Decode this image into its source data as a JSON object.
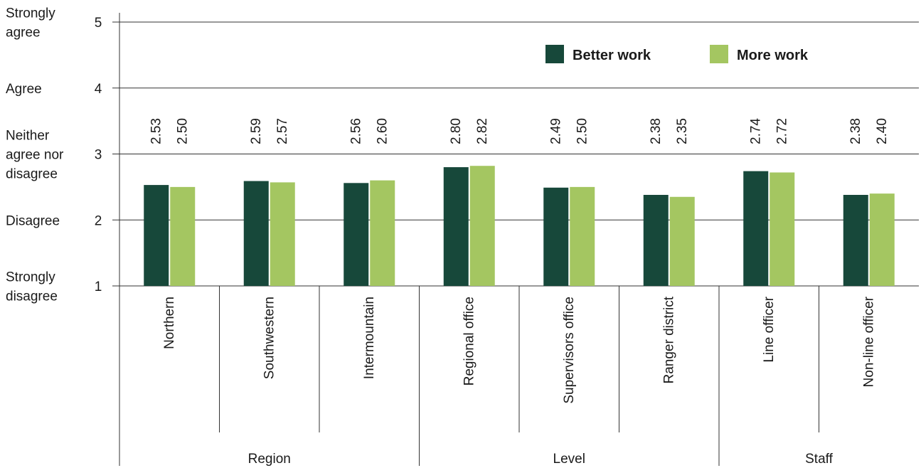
{
  "chart_data": {
    "type": "bar",
    "categories": [
      "Northern",
      "Southwestern",
      "Intermountain",
      "Regional office",
      "Supervisors office",
      "Ranger district",
      "Line officer",
      "Non-line officer"
    ],
    "groups": [
      {
        "label": "Region",
        "categories": [
          "Northern",
          "Southwestern",
          "Intermountain"
        ]
      },
      {
        "label": "Level",
        "categories": [
          "Regional office",
          "Supervisors office",
          "Ranger district"
        ]
      },
      {
        "label": "Staff",
        "categories": [
          "Line officer",
          "Non-line officer"
        ]
      }
    ],
    "series": [
      {
        "name": "Better work",
        "color": "#17483a",
        "values": [
          2.53,
          2.59,
          2.56,
          2.8,
          2.49,
          2.38,
          2.74,
          2.38
        ],
        "labels": [
          "2.53",
          "2.59",
          "2.56",
          "2.80",
          "2.49",
          "2.38",
          "2.74",
          "2.38"
        ]
      },
      {
        "name": "More work",
        "color": "#a4c661",
        "values": [
          2.5,
          2.57,
          2.6,
          2.82,
          2.5,
          2.35,
          2.72,
          2.4
        ],
        "labels": [
          "2.50",
          "2.57",
          "2.60",
          "2.82",
          "2.50",
          "2.35",
          "2.72",
          "2.40"
        ]
      }
    ],
    "ylim": [
      1,
      5
    ],
    "yticks": [
      1,
      2,
      3,
      4,
      5
    ],
    "ytick_descriptions": [
      {
        "value": 5,
        "text": [
          "Strongly",
          "agree"
        ]
      },
      {
        "value": 4,
        "text": [
          "Agree"
        ]
      },
      {
        "value": 3,
        "text": [
          "Neither",
          "agree nor",
          "disagree"
        ]
      },
      {
        "value": 2,
        "text": [
          "Disagree"
        ]
      },
      {
        "value": 1,
        "text": [
          "Strongly",
          "disagree"
        ]
      }
    ],
    "grid": true,
    "legend": "top-right"
  }
}
